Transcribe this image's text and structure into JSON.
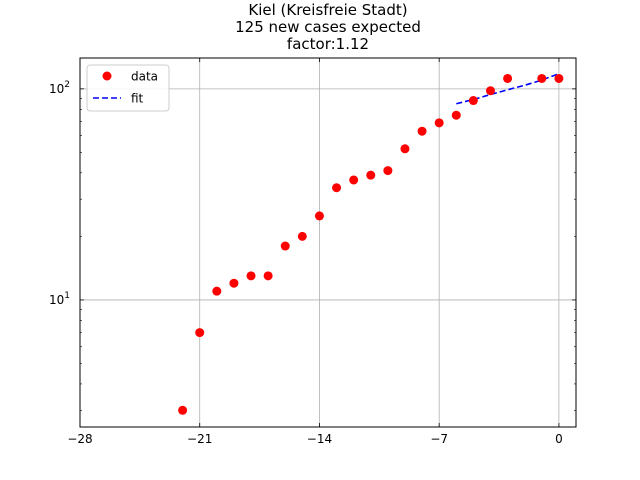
{
  "chart_data": {
    "type": "scatter",
    "title_lines": [
      "Kiel (Kreisfreie Stadt)",
      "125 new cases expected",
      "factor:1.12"
    ],
    "xlabel": "",
    "ylabel": "",
    "x_range": [
      -28,
      1
    ],
    "y_range": [
      2.5,
      140
    ],
    "y_scale": "log",
    "grid": true,
    "legend_position": "top-left",
    "x_ticks": [
      {
        "value": -28,
        "label": "−28"
      },
      {
        "value": -21,
        "label": "−21"
      },
      {
        "value": -14,
        "label": "−14"
      },
      {
        "value": -7,
        "label": "−7"
      },
      {
        "value": 0,
        "label": "0"
      }
    ],
    "y_ticks": [
      {
        "value": 10,
        "base": "10",
        "exp": "1"
      },
      {
        "value": 100,
        "base": "10",
        "exp": "2"
      }
    ],
    "series": [
      {
        "name": "data",
        "style": "markers",
        "color": "#ff0000",
        "x": [
          -22,
          -21,
          -20,
          -19,
          -18,
          -17,
          -16,
          -15,
          -14,
          -13,
          -12,
          -11,
          -10,
          -9,
          -8,
          -7,
          -6,
          -5,
          -4,
          -3,
          -1,
          0
        ],
        "y": [
          3,
          7,
          11,
          12,
          13,
          13,
          18,
          20,
          25,
          34,
          37,
          39,
          41,
          52,
          63,
          69,
          75,
          88,
          98,
          112,
          112,
          112
        ]
      },
      {
        "name": "fit",
        "style": "dashed-line",
        "color": "#0000ff",
        "x": [
          -6,
          -5,
          -4,
          -3,
          -2,
          -1,
          0
        ],
        "y": [
          85,
          89,
          94,
          99,
          104,
          110,
          118
        ]
      }
    ]
  }
}
